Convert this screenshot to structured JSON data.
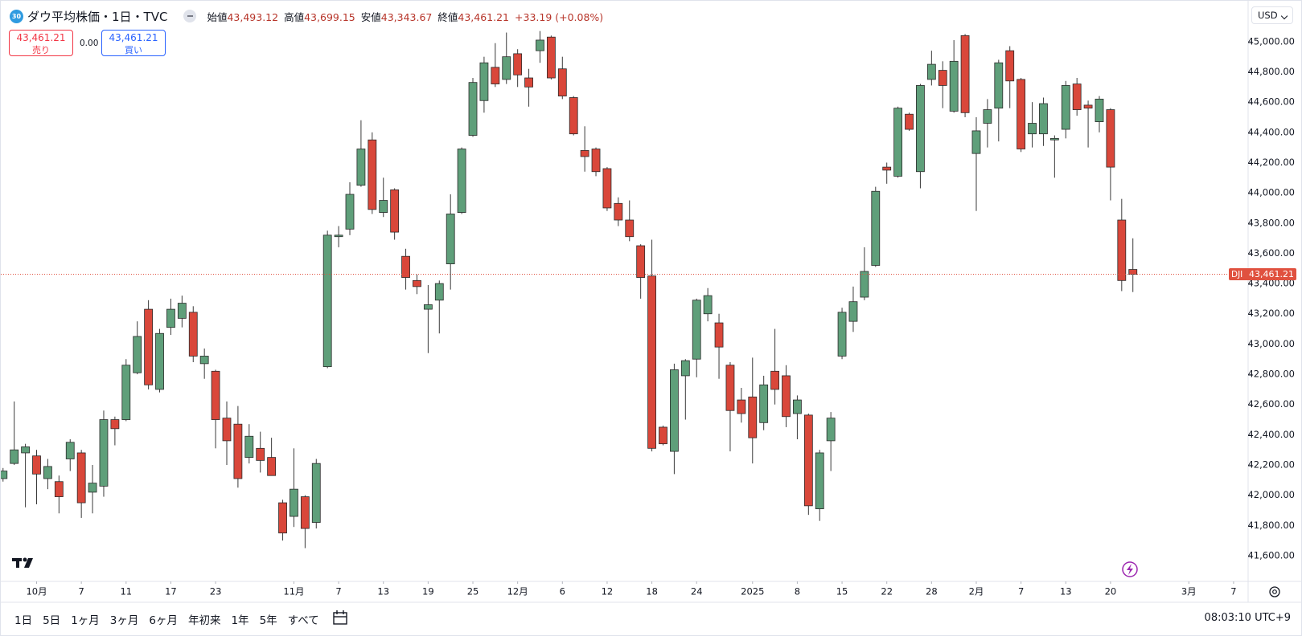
{
  "header": {
    "badge": "30",
    "title": "ダウ平均株価・1日・TVC",
    "open_label": "始値",
    "open": "43,493.12",
    "high_label": "高値",
    "high": "43,699.15",
    "low_label": "安値",
    "low": "43,343.67",
    "close_label": "終値",
    "close": "43,461.21",
    "change": "+33.19 (+0.08%)"
  },
  "trade": {
    "sell_price": "43,461.21",
    "sell_label": "売り",
    "spread": "0.00",
    "buy_price": "43,461.21",
    "buy_label": "買い"
  },
  "currency": "USD",
  "chart_data": {
    "type": "candlestick",
    "open": [
      42110,
      42210,
      42280,
      42260,
      42110,
      42090,
      42240,
      42280,
      42020,
      42060,
      42500,
      42500,
      42810,
      43230,
      42700,
      43110,
      43170,
      43210,
      42870,
      42820,
      42510,
      42470,
      42250,
      42310,
      42250,
      41950,
      41860,
      41990,
      41820,
      42850,
      43710,
      43760,
      44050,
      44350,
      43870,
      44020,
      43580,
      43420,
      43230,
      43290,
      43530,
      43870,
      44380,
      44610,
      44830,
      44750,
      44920,
      44760,
      44940,
      45030,
      44820,
      44630,
      44280,
      44290,
      44160,
      43930,
      43820,
      43650,
      43450,
      42450,
      42290,
      42790,
      42900,
      43200,
      43140,
      42860,
      42630,
      42650,
      42480,
      42820,
      42790,
      42540,
      42530,
      41910,
      42360,
      42920,
      43150,
      43310,
      43520,
      44170,
      44110,
      44520,
      44140,
      44750,
      44810,
      44540,
      45040,
      44260,
      44460,
      44560,
      44940,
      44750,
      44390,
      44390,
      44350,
      44420,
      44720,
      44580,
      44470,
      44550,
      43820,
      43493.12
    ],
    "high": [
      42180,
      42620,
      42340,
      42300,
      42240,
      42130,
      42370,
      42300,
      42200,
      42560,
      42520,
      42900,
      43150,
      43290,
      43100,
      43300,
      43320,
      43250,
      42970,
      42830,
      42620,
      42590,
      42470,
      42420,
      42380,
      41970,
      42310,
      42000,
      42240,
      43750,
      43780,
      44070,
      44480,
      44400,
      44100,
      44030,
      43630,
      43460,
      43390,
      43420,
      43990,
      44300,
      44760,
      44900,
      44990,
      45060,
      44950,
      44820,
      45070,
      45040,
      44900,
      44640,
      44440,
      44300,
      44170,
      43970,
      43950,
      43660,
      43690,
      42460,
      42870,
      42900,
      43300,
      43370,
      43200,
      42880,
      42710,
      42910,
      42790,
      43100,
      42860,
      42660,
      42540,
      42300,
      42550,
      43240,
      43380,
      43640,
      44040,
      44200,
      44570,
      44530,
      44720,
      44940,
      44870,
      45010,
      45050,
      44500,
      44620,
      44880,
      44970,
      44760,
      44600,
      44630,
      44380,
      44740,
      44760,
      44610,
      44640,
      44560,
      43960,
      43699.15
    ],
    "low": [
      42090,
      42200,
      41920,
      41940,
      42040,
      41880,
      42160,
      41850,
      41880,
      41990,
      42330,
      42490,
      42800,
      42700,
      42680,
      43060,
      43110,
      42880,
      42770,
      42310,
      42200,
      42050,
      42210,
      42150,
      42130,
      41700,
      41790,
      41650,
      41780,
      42840,
      43640,
      43720,
      44040,
      43860,
      43840,
      43690,
      43360,
      43330,
      42940,
      43070,
      43360,
      43860,
      44370,
      44530,
      44700,
      44720,
      44700,
      44570,
      44860,
      44750,
      44620,
      44380,
      44140,
      44110,
      43880,
      43780,
      43680,
      43300,
      42290,
      42330,
      42140,
      42500,
      42780,
      43150,
      42770,
      42290,
      42480,
      42210,
      42430,
      42600,
      42450,
      42370,
      41870,
      41830,
      42160,
      42900,
      43080,
      43290,
      43510,
      44060,
      44100,
      44410,
      44030,
      44710,
      44560,
      44530,
      44500,
      43880,
      44300,
      44340,
      44560,
      44270,
      44300,
      44310,
      44100,
      44360,
      44510,
      44300,
      44400,
      43950,
      43350,
      43343.67
    ],
    "close": [
      42160,
      42300,
      42320,
      42140,
      42190,
      41990,
      42350,
      41950,
      42080,
      42500,
      42440,
      42860,
      43050,
      42730,
      43070,
      43230,
      43270,
      42920,
      42920,
      42500,
      42360,
      42110,
      42390,
      42230,
      42130,
      41750,
      42040,
      41780,
      42210,
      43720,
      43720,
      43990,
      44290,
      43890,
      43950,
      43740,
      43440,
      43380,
      43260,
      43400,
      43860,
      44290,
      44730,
      44860,
      44720,
      44900,
      44780,
      44700,
      45010,
      44760,
      44640,
      44390,
      44240,
      44140,
      43900,
      43820,
      43710,
      43440,
      42310,
      42340,
      42830,
      42890,
      43290,
      43320,
      42980,
      42560,
      42540,
      42380,
      42730,
      42700,
      42520,
      42630,
      41930,
      42280,
      42510,
      43210,
      43280,
      43480,
      44010,
      44150,
      44560,
      44420,
      44710,
      44850,
      44710,
      44870,
      44530,
      44410,
      44550,
      44860,
      44740,
      44290,
      44460,
      44590,
      44360,
      44710,
      44550,
      44560,
      44620,
      44170,
      43420,
      43461.21
    ],
    "up_color": "#5f9f7a",
    "down_color": "#d9473a",
    "xlim": [
      -0.2,
      111.3
    ],
    "ylim": [
      41430,
      45270
    ],
    "xticks": [
      {
        "value": 3,
        "label": "10月"
      },
      {
        "value": 7,
        "label": "7"
      },
      {
        "value": 11,
        "label": "11"
      },
      {
        "value": 15,
        "label": "17"
      },
      {
        "value": 19,
        "label": "23"
      },
      {
        "value": 26,
        "label": "11月"
      },
      {
        "value": 30,
        "label": "7"
      },
      {
        "value": 34,
        "label": "13"
      },
      {
        "value": 38,
        "label": "19"
      },
      {
        "value": 42,
        "label": "25"
      },
      {
        "value": 46,
        "label": "12月"
      },
      {
        "value": 50,
        "label": "6"
      },
      {
        "value": 54,
        "label": "12"
      },
      {
        "value": 58,
        "label": "18"
      },
      {
        "value": 62,
        "label": "24"
      },
      {
        "value": 67,
        "label": "2025"
      },
      {
        "value": 71,
        "label": "8"
      },
      {
        "value": 75,
        "label": "15"
      },
      {
        "value": 79,
        "label": "22"
      },
      {
        "value": 83,
        "label": "28"
      },
      {
        "value": 87,
        "label": "2月"
      },
      {
        "value": 91,
        "label": "7"
      },
      {
        "value": 95,
        "label": "13"
      },
      {
        "value": 99,
        "label": "20"
      },
      {
        "value": 106,
        "label": "3月"
      },
      {
        "value": 110,
        "label": "7"
      }
    ],
    "yticks": [
      {
        "value": 41600,
        "label": "41,600.00"
      },
      {
        "value": 41800,
        "label": "41,800.00"
      },
      {
        "value": 42000,
        "label": "42,000.00"
      },
      {
        "value": 42200,
        "label": "42,200.00"
      },
      {
        "value": 42400,
        "label": "42,400.00"
      },
      {
        "value": 42600,
        "label": "42,600.00"
      },
      {
        "value": 42800,
        "label": "42,800.00"
      },
      {
        "value": 43000,
        "label": "43,000.00"
      },
      {
        "value": 43200,
        "label": "43,200.00"
      },
      {
        "value": 43400,
        "label": "43,400.00"
      },
      {
        "value": 43600,
        "label": "43,600.00"
      },
      {
        "value": 43800,
        "label": "43,800.00"
      },
      {
        "value": 44000,
        "label": "44,000.00"
      },
      {
        "value": 44200,
        "label": "44,200.00"
      },
      {
        "value": 44400,
        "label": "44,400.00"
      },
      {
        "value": 44600,
        "label": "44,600.00"
      },
      {
        "value": 44800,
        "label": "44,800.00"
      },
      {
        "value": 45000,
        "label": "45,000.00"
      }
    ],
    "grid": false,
    "price_line": {
      "name": "DJI",
      "value": 43461.21,
      "label": "43,461.21",
      "color": "#e0513f"
    }
  },
  "toolbar": {
    "ranges": [
      "1日",
      "5日",
      "1ヶ月",
      "3ヶ月",
      "6ヶ月",
      "年初来",
      "1年",
      "5年",
      "すべて"
    ],
    "time": "08:03:10 UTC+9"
  }
}
